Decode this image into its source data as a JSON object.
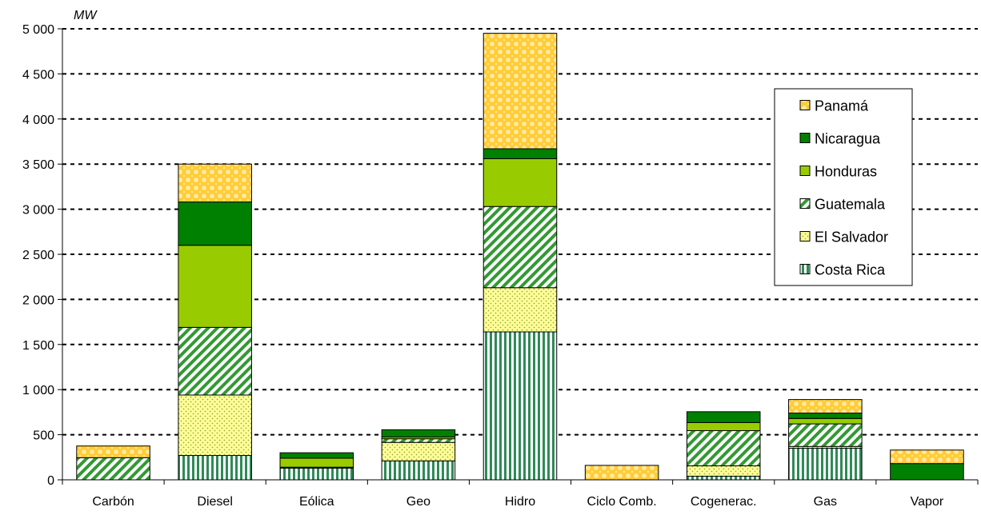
{
  "chart_data": {
    "type": "bar",
    "stacked": true,
    "unit_label": "MW",
    "categories": [
      "Carbón",
      "Diesel",
      "Eólica",
      "Geo",
      "Hidro",
      "Ciclo Comb.",
      "Cogenerac.",
      "Gas",
      "Vapor"
    ],
    "ylim": [
      0,
      5000
    ],
    "yticks": [
      0,
      500,
      1000,
      1500,
      2000,
      2500,
      3000,
      3500,
      4000,
      4500,
      5000
    ],
    "ytick_labels": [
      "0",
      "500",
      "1 000",
      "1 500",
      "2 000",
      "2 500",
      "3 000",
      "3 500",
      "4 000",
      "4 500",
      "5 000"
    ],
    "grid": "horizontal-dashed",
    "legend_position": "right",
    "series": [
      {
        "name": "Costa Rica",
        "color": "#2e8b57",
        "pattern": "vertical-stripes",
        "values": [
          0,
          270,
          130,
          210,
          1640,
          0,
          40,
          350,
          0
        ]
      },
      {
        "name": "El Salvador",
        "color": "#ffff99",
        "pattern": "dots",
        "values": [
          0,
          670,
          10,
          205,
          490,
          0,
          115,
          20,
          0
        ]
      },
      {
        "name": "Guatemala",
        "color": "#339933",
        "pattern": "diagonal-stripes",
        "values": [
          245,
          750,
          0,
          40,
          900,
          0,
          390,
          250,
          0
        ]
      },
      {
        "name": "Honduras",
        "color": "#99cc00",
        "pattern": "solid",
        "values": [
          0,
          910,
          100,
          20,
          530,
          0,
          90,
          60,
          0
        ]
      },
      {
        "name": "Nicaragua",
        "color": "#008000",
        "pattern": "solid",
        "values": [
          0,
          480,
          60,
          80,
          110,
          0,
          120,
          60,
          180
        ]
      },
      {
        "name": "Panamá",
        "color": "#ffcc33",
        "pattern": "circles",
        "values": [
          130,
          420,
          0,
          0,
          1280,
          160,
          0,
          150,
          150
        ]
      }
    ]
  }
}
